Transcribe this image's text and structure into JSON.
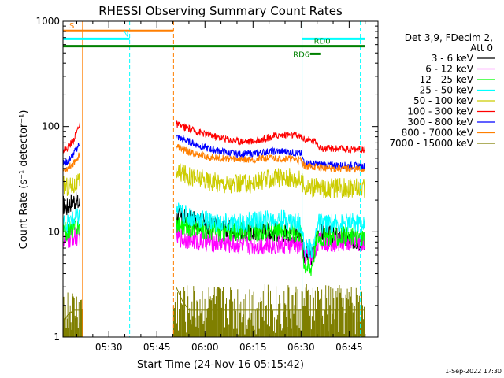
{
  "chart_data": {
    "type": "line",
    "title": "RHESSI Observing Summary Count Rates",
    "xlabel": "Start Time (24-Nov-16 05:15:42)",
    "ylabel": "Count Rate (s⁻¹ detector⁻¹)",
    "yscale": "log",
    "ylim": [
      1,
      1000
    ],
    "xlim": [
      "05:15:42",
      "06:54:00"
    ],
    "yticks": [
      {
        "label": "1",
        "value": 1
      },
      {
        "label": "10",
        "value": 10
      },
      {
        "label": "100",
        "value": 100
      },
      {
        "label": "1000",
        "value": 1000
      }
    ],
    "xticks": [
      {
        "label": "05:30",
        "minutes": 30
      },
      {
        "label": "05:45",
        "minutes": 45
      },
      {
        "label": "06:00",
        "minutes": 60
      },
      {
        "label": "06:15",
        "minutes": 75
      },
      {
        "label": "06:30",
        "minutes": 90
      },
      {
        "label": "06:45",
        "minutes": 105
      }
    ],
    "legend_header": [
      "Det 3,9, FDecim 2,",
      "Att 0"
    ],
    "legend_position": "right",
    "gaps": [
      [
        21.8,
        50.2
      ]
    ],
    "series": [
      {
        "name": "3 - 6 keV",
        "color": "#000000",
        "pre": [
          [
            15.7,
            18
          ],
          [
            17,
            17
          ],
          [
            18,
            19
          ],
          [
            19,
            20
          ],
          [
            20,
            19
          ],
          [
            21,
            18
          ]
        ],
        "post": [
          [
            51,
            14
          ],
          [
            55,
            13
          ],
          [
            60,
            12
          ],
          [
            65,
            11
          ],
          [
            70,
            10
          ],
          [
            75,
            10
          ],
          [
            80,
            10
          ],
          [
            85,
            10
          ],
          [
            88,
            9.5
          ],
          [
            90,
            9.5
          ],
          [
            91,
            6
          ],
          [
            94,
            6
          ],
          [
            95,
            10
          ],
          [
            100,
            9
          ],
          [
            105,
            8.5
          ],
          [
            110,
            8
          ]
        ]
      },
      {
        "name": "6 - 12 keV",
        "color": "#ff00ff",
        "pre": [
          [
            15.7,
            8
          ],
          [
            17,
            8
          ],
          [
            19,
            9
          ],
          [
            21,
            9
          ]
        ],
        "post": [
          [
            51,
            9
          ],
          [
            55,
            8.5
          ],
          [
            60,
            8
          ],
          [
            65,
            8
          ],
          [
            70,
            7.5
          ],
          [
            75,
            7.5
          ],
          [
            80,
            7.5
          ],
          [
            85,
            7.5
          ],
          [
            90,
            7.5
          ],
          [
            91,
            6
          ],
          [
            94,
            6
          ],
          [
            95,
            8
          ],
          [
            100,
            8
          ],
          [
            110,
            8
          ]
        ]
      },
      {
        "name": "12 - 25 keV",
        "color": "#00ff00",
        "pre": [
          [
            15.7,
            10
          ],
          [
            17,
            10
          ],
          [
            19,
            11
          ],
          [
            21,
            11
          ]
        ],
        "post": [
          [
            51,
            12
          ],
          [
            55,
            11
          ],
          [
            60,
            10.5
          ],
          [
            65,
            10
          ],
          [
            70,
            10
          ],
          [
            75,
            10
          ],
          [
            80,
            10
          ],
          [
            85,
            10
          ],
          [
            90,
            10
          ],
          [
            91,
            5
          ],
          [
            93,
            4.5
          ],
          [
            94,
            6
          ],
          [
            95,
            9
          ],
          [
            100,
            9
          ],
          [
            110,
            9
          ]
        ]
      },
      {
        "name": "25 - 50 keV",
        "color": "#00ffff",
        "pre": [
          [
            15.7,
            12
          ],
          [
            17,
            12
          ],
          [
            19,
            13
          ],
          [
            21,
            14
          ]
        ],
        "post": [
          [
            51,
            16
          ],
          [
            55,
            14
          ],
          [
            60,
            13
          ],
          [
            65,
            12
          ],
          [
            70,
            12
          ],
          [
            75,
            12.5
          ],
          [
            80,
            13
          ],
          [
            85,
            13
          ],
          [
            90,
            12
          ],
          [
            91,
            7
          ],
          [
            94,
            7
          ],
          [
            95,
            12
          ],
          [
            100,
            12
          ],
          [
            110,
            12
          ]
        ]
      },
      {
        "name": "50 - 100 keV",
        "color": "#cccc00",
        "pre": [
          [
            15.7,
            28
          ],
          [
            17,
            27
          ],
          [
            19,
            28
          ],
          [
            21,
            29
          ]
        ],
        "post": [
          [
            51,
            38
          ],
          [
            55,
            34
          ],
          [
            60,
            31
          ],
          [
            65,
            29
          ],
          [
            70,
            28
          ],
          [
            75,
            29
          ],
          [
            80,
            32
          ],
          [
            85,
            33
          ],
          [
            90,
            31
          ],
          [
            91,
            27
          ],
          [
            95,
            26
          ],
          [
            100,
            26
          ],
          [
            110,
            26
          ]
        ]
      },
      {
        "name": "100 - 300 keV",
        "color": "#ff0000",
        "pre": [
          [
            15.7,
            60
          ],
          [
            17,
            62
          ],
          [
            19,
            75
          ],
          [
            20,
            90
          ],
          [
            21,
            110
          ]
        ],
        "post": [
          [
            51,
            105
          ],
          [
            55,
            95
          ],
          [
            60,
            85
          ],
          [
            65,
            78
          ],
          [
            70,
            73
          ],
          [
            75,
            72
          ],
          [
            78,
            76
          ],
          [
            82,
            82
          ],
          [
            86,
            84
          ],
          [
            90,
            80
          ],
          [
            91,
            76
          ],
          [
            95,
            72
          ],
          [
            96,
            62
          ],
          [
            100,
            62
          ],
          [
            110,
            60
          ]
        ]
      },
      {
        "name": "300 - 800 keV",
        "color": "#0000ff",
        "pre": [
          [
            15.7,
            45
          ],
          [
            17,
            46
          ],
          [
            19,
            55
          ],
          [
            21,
            70
          ]
        ],
        "post": [
          [
            51,
            80
          ],
          [
            55,
            72
          ],
          [
            60,
            63
          ],
          [
            65,
            58
          ],
          [
            70,
            55
          ],
          [
            75,
            55
          ],
          [
            80,
            58
          ],
          [
            85,
            58
          ],
          [
            90,
            55
          ],
          [
            91,
            45
          ],
          [
            95,
            44
          ],
          [
            100,
            43
          ],
          [
            110,
            42
          ]
        ]
      },
      {
        "name": "800 - 7000 keV",
        "color": "#ff7f00",
        "pre": [
          [
            15.7,
            38
          ],
          [
            17,
            40
          ],
          [
            19,
            45
          ],
          [
            21,
            55
          ]
        ],
        "post": [
          [
            51,
            65
          ],
          [
            55,
            57
          ],
          [
            60,
            52
          ],
          [
            65,
            50
          ],
          [
            70,
            49
          ],
          [
            75,
            49
          ],
          [
            80,
            50
          ],
          [
            85,
            50
          ],
          [
            90,
            48
          ],
          [
            91,
            42
          ],
          [
            95,
            41
          ],
          [
            100,
            40
          ],
          [
            110,
            39
          ]
        ]
      },
      {
        "name": "7000 - 15000 keV",
        "color": "#7f7f00",
        "pre": [
          [
            15.7,
            1.3
          ],
          [
            17,
            1.6
          ],
          [
            19,
            1.8
          ],
          [
            21,
            1.8
          ]
        ],
        "post": [
          [
            51,
            3
          ],
          [
            53,
            2.2
          ],
          [
            55,
            1.8
          ],
          [
            60,
            1.8
          ],
          [
            70,
            1.8
          ],
          [
            80,
            1.8
          ],
          [
            90,
            1.8
          ],
          [
            100,
            1.8
          ],
          [
            110,
            1.8
          ]
        ]
      }
    ],
    "annotations": {
      "vertical_lines": [
        {
          "minutes": 15.7,
          "color": "#00ffff",
          "style": "solid"
        },
        {
          "minutes": 21.8,
          "color": "#ff7f00",
          "style": "solid"
        },
        {
          "minutes": 36.5,
          "color": "#00ffff",
          "style": "dashed"
        },
        {
          "minutes": 50.2,
          "color": "#ff7f00",
          "style": "dashed"
        },
        {
          "minutes": 90.3,
          "color": "#00ffff",
          "style": "solid"
        },
        {
          "minutes": 108.5,
          "color": "#00ffff",
          "style": "dashed"
        }
      ],
      "bars": [
        {
          "label": "S",
          "color": "#ff7f00",
          "start": 15.7,
          "end": 50.2,
          "level": 810
        },
        {
          "label": "N",
          "color": "#00ffff",
          "start": 15.7,
          "end": 36.5,
          "level": 680
        },
        {
          "label": "",
          "color": "#00ffff",
          "start": 90.3,
          "end": 110.0,
          "level": 680
        },
        {
          "label": "",
          "color": "#008000",
          "start": 15.7,
          "end": 110.0,
          "level": 580
        },
        {
          "label": "RD6",
          "color": "#008000",
          "start": 92.8,
          "end": 96.0,
          "level": 490
        }
      ],
      "rd0_label": "RD0",
      "rd6_label": "RD6"
    },
    "grid": false
  },
  "footer": {
    "date_stamp": "1-Sep-2022 17:30"
  }
}
